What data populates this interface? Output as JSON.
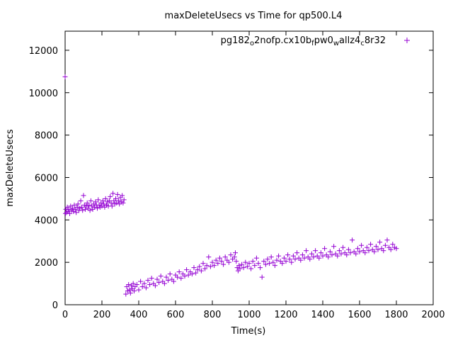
{
  "chart_data": {
    "type": "scatter",
    "title": "maxDeleteUsecs vs Time for qp500.L4",
    "xlabel": "Time(s)",
    "ylabel": "maxDeleteUsecs",
    "xlim": [
      0,
      2000
    ],
    "ylim": [
      0,
      12900
    ],
    "xticks": [
      0,
      200,
      400,
      600,
      800,
      1000,
      1200,
      1400,
      1600,
      1800,
      2000
    ],
    "yticks": [
      0,
      2000,
      4000,
      6000,
      8000,
      10000,
      12000
    ],
    "grid": false,
    "legend_position": "top-right",
    "series": [
      {
        "name_parts": [
          {
            "t": "pg182",
            "sub": false
          },
          {
            "t": "o",
            "sub": true
          },
          {
            "t": "2nofp.cx10b",
            "sub": false
          },
          {
            "t": "f",
            "sub": true
          },
          {
            "t": "pw0",
            "sub": false
          },
          {
            "t": "w",
            "sub": true
          },
          {
            "t": "allz4",
            "sub": false
          },
          {
            "t": "c",
            "sub": true
          },
          {
            "t": "8r32",
            "sub": false
          }
        ],
        "color": "#9400d3",
        "marker": "plus",
        "points": [
          [
            0,
            10750
          ],
          [
            2,
            4300
          ],
          [
            4,
            4500
          ],
          [
            8,
            4350
          ],
          [
            12,
            4600
          ],
          [
            16,
            4400
          ],
          [
            20,
            4500
          ],
          [
            25,
            4300
          ],
          [
            30,
            4650
          ],
          [
            35,
            4450
          ],
          [
            40,
            4550
          ],
          [
            45,
            4400
          ],
          [
            50,
            4700
          ],
          [
            55,
            4500
          ],
          [
            60,
            4350
          ],
          [
            65,
            4600
          ],
          [
            70,
            4750
          ],
          [
            75,
            4450
          ],
          [
            80,
            4550
          ],
          [
            85,
            4900
          ],
          [
            90,
            4600
          ],
          [
            95,
            4450
          ],
          [
            100,
            5150
          ],
          [
            105,
            4700
          ],
          [
            110,
            4500
          ],
          [
            115,
            4650
          ],
          [
            120,
            4800
          ],
          [
            125,
            4550
          ],
          [
            130,
            4700
          ],
          [
            135,
            4450
          ],
          [
            140,
            4900
          ],
          [
            145,
            4650
          ],
          [
            150,
            4500
          ],
          [
            155,
            4750
          ],
          [
            160,
            4600
          ],
          [
            165,
            4850
          ],
          [
            170,
            4700
          ],
          [
            175,
            4550
          ],
          [
            180,
            4950
          ],
          [
            185,
            4700
          ],
          [
            190,
            4600
          ],
          [
            195,
            4800
          ],
          [
            200,
            4650
          ],
          [
            205,
            4900
          ],
          [
            210,
            4750
          ],
          [
            215,
            4600
          ],
          [
            220,
            5000
          ],
          [
            225,
            4700
          ],
          [
            230,
            4850
          ],
          [
            235,
            4650
          ],
          [
            240,
            4900
          ],
          [
            245,
            5100
          ],
          [
            250,
            4800
          ],
          [
            255,
            4650
          ],
          [
            260,
            5250
          ],
          [
            265,
            4900
          ],
          [
            270,
            4750
          ],
          [
            275,
            5000
          ],
          [
            280,
            4800
          ],
          [
            285,
            5200
          ],
          [
            290,
            4900
          ],
          [
            295,
            4750
          ],
          [
            300,
            5050
          ],
          [
            305,
            4850
          ],
          [
            310,
            5150
          ],
          [
            315,
            4800
          ],
          [
            320,
            4950
          ],
          [
            330,
            500
          ],
          [
            335,
            850
          ],
          [
            340,
            650
          ],
          [
            345,
            950
          ],
          [
            350,
            700
          ],
          [
            355,
            550
          ],
          [
            360,
            900
          ],
          [
            365,
            750
          ],
          [
            370,
            1000
          ],
          [
            375,
            650
          ],
          [
            380,
            850
          ],
          [
            390,
            950
          ],
          [
            400,
            700
          ],
          [
            410,
            1100
          ],
          [
            420,
            850
          ],
          [
            430,
            1000
          ],
          [
            440,
            800
          ],
          [
            450,
            1150
          ],
          [
            460,
            950
          ],
          [
            470,
            1250
          ],
          [
            480,
            1000
          ],
          [
            490,
            900
          ],
          [
            500,
            1200
          ],
          [
            510,
            1050
          ],
          [
            520,
            1350
          ],
          [
            530,
            1100
          ],
          [
            540,
            1000
          ],
          [
            550,
            1300
          ],
          [
            560,
            1150
          ],
          [
            570,
            1450
          ],
          [
            580,
            1200
          ],
          [
            590,
            1100
          ],
          [
            600,
            1400
          ],
          [
            610,
            1300
          ],
          [
            620,
            1550
          ],
          [
            630,
            1250
          ],
          [
            640,
            1450
          ],
          [
            650,
            1350
          ],
          [
            660,
            1650
          ],
          [
            670,
            1400
          ],
          [
            680,
            1550
          ],
          [
            690,
            1450
          ],
          [
            700,
            1750
          ],
          [
            710,
            1500
          ],
          [
            720,
            1650
          ],
          [
            730,
            1800
          ],
          [
            740,
            1600
          ],
          [
            750,
            1950
          ],
          [
            760,
            1700
          ],
          [
            770,
            1850
          ],
          [
            780,
            2250
          ],
          [
            790,
            1800
          ],
          [
            800,
            2000
          ],
          [
            810,
            1850
          ],
          [
            820,
            2100
          ],
          [
            830,
            1950
          ],
          [
            840,
            2200
          ],
          [
            850,
            2050
          ],
          [
            860,
            1900
          ],
          [
            870,
            2250
          ],
          [
            880,
            2100
          ],
          [
            890,
            2000
          ],
          [
            900,
            2350
          ],
          [
            910,
            2150
          ],
          [
            920,
            2250
          ],
          [
            925,
            2450
          ],
          [
            930,
            2050
          ],
          [
            935,
            1750
          ],
          [
            940,
            1600
          ],
          [
            945,
            1850
          ],
          [
            950,
            1700
          ],
          [
            960,
            1900
          ],
          [
            970,
            1750
          ],
          [
            980,
            2000
          ],
          [
            990,
            1800
          ],
          [
            1000,
            1950
          ],
          [
            1010,
            1700
          ],
          [
            1020,
            2050
          ],
          [
            1030,
            1850
          ],
          [
            1040,
            2200
          ],
          [
            1050,
            1950
          ],
          [
            1060,
            1750
          ],
          [
            1070,
            1300
          ],
          [
            1080,
            2050
          ],
          [
            1090,
            1900
          ],
          [
            1100,
            2150
          ],
          [
            1110,
            1950
          ],
          [
            1120,
            2250
          ],
          [
            1130,
            2000
          ],
          [
            1140,
            1850
          ],
          [
            1150,
            2100
          ],
          [
            1160,
            2300
          ],
          [
            1170,
            2050
          ],
          [
            1180,
            1950
          ],
          [
            1190,
            2200
          ],
          [
            1200,
            2050
          ],
          [
            1210,
            2350
          ],
          [
            1220,
            2150
          ],
          [
            1230,
            2000
          ],
          [
            1240,
            2300
          ],
          [
            1250,
            2150
          ],
          [
            1260,
            2450
          ],
          [
            1270,
            2200
          ],
          [
            1280,
            2100
          ],
          [
            1290,
            2350
          ],
          [
            1300,
            2200
          ],
          [
            1310,
            2550
          ],
          [
            1320,
            2250
          ],
          [
            1330,
            2150
          ],
          [
            1340,
            2400
          ],
          [
            1350,
            2250
          ],
          [
            1360,
            2550
          ],
          [
            1370,
            2300
          ],
          [
            1380,
            2200
          ],
          [
            1390,
            2450
          ],
          [
            1400,
            2300
          ],
          [
            1410,
            2650
          ],
          [
            1420,
            2350
          ],
          [
            1430,
            2250
          ],
          [
            1440,
            2500
          ],
          [
            1450,
            2350
          ],
          [
            1460,
            2750
          ],
          [
            1470,
            2400
          ],
          [
            1480,
            2300
          ],
          [
            1490,
            2550
          ],
          [
            1500,
            2400
          ],
          [
            1510,
            2700
          ],
          [
            1520,
            2450
          ],
          [
            1530,
            2350
          ],
          [
            1540,
            2600
          ],
          [
            1550,
            2450
          ],
          [
            1560,
            3050
          ],
          [
            1570,
            2500
          ],
          [
            1580,
            2400
          ],
          [
            1590,
            2650
          ],
          [
            1600,
            2500
          ],
          [
            1610,
            2800
          ],
          [
            1620,
            2550
          ],
          [
            1630,
            2450
          ],
          [
            1640,
            2700
          ],
          [
            1650,
            2550
          ],
          [
            1660,
            2850
          ],
          [
            1670,
            2600
          ],
          [
            1680,
            2500
          ],
          [
            1690,
            2750
          ],
          [
            1700,
            2600
          ],
          [
            1710,
            2950
          ],
          [
            1720,
            2650
          ],
          [
            1730,
            2550
          ],
          [
            1740,
            2800
          ],
          [
            1750,
            3050
          ],
          [
            1760,
            2700
          ],
          [
            1770,
            2600
          ],
          [
            1780,
            2850
          ],
          [
            1790,
            2700
          ],
          [
            1800,
            2650
          ]
        ]
      }
    ]
  }
}
